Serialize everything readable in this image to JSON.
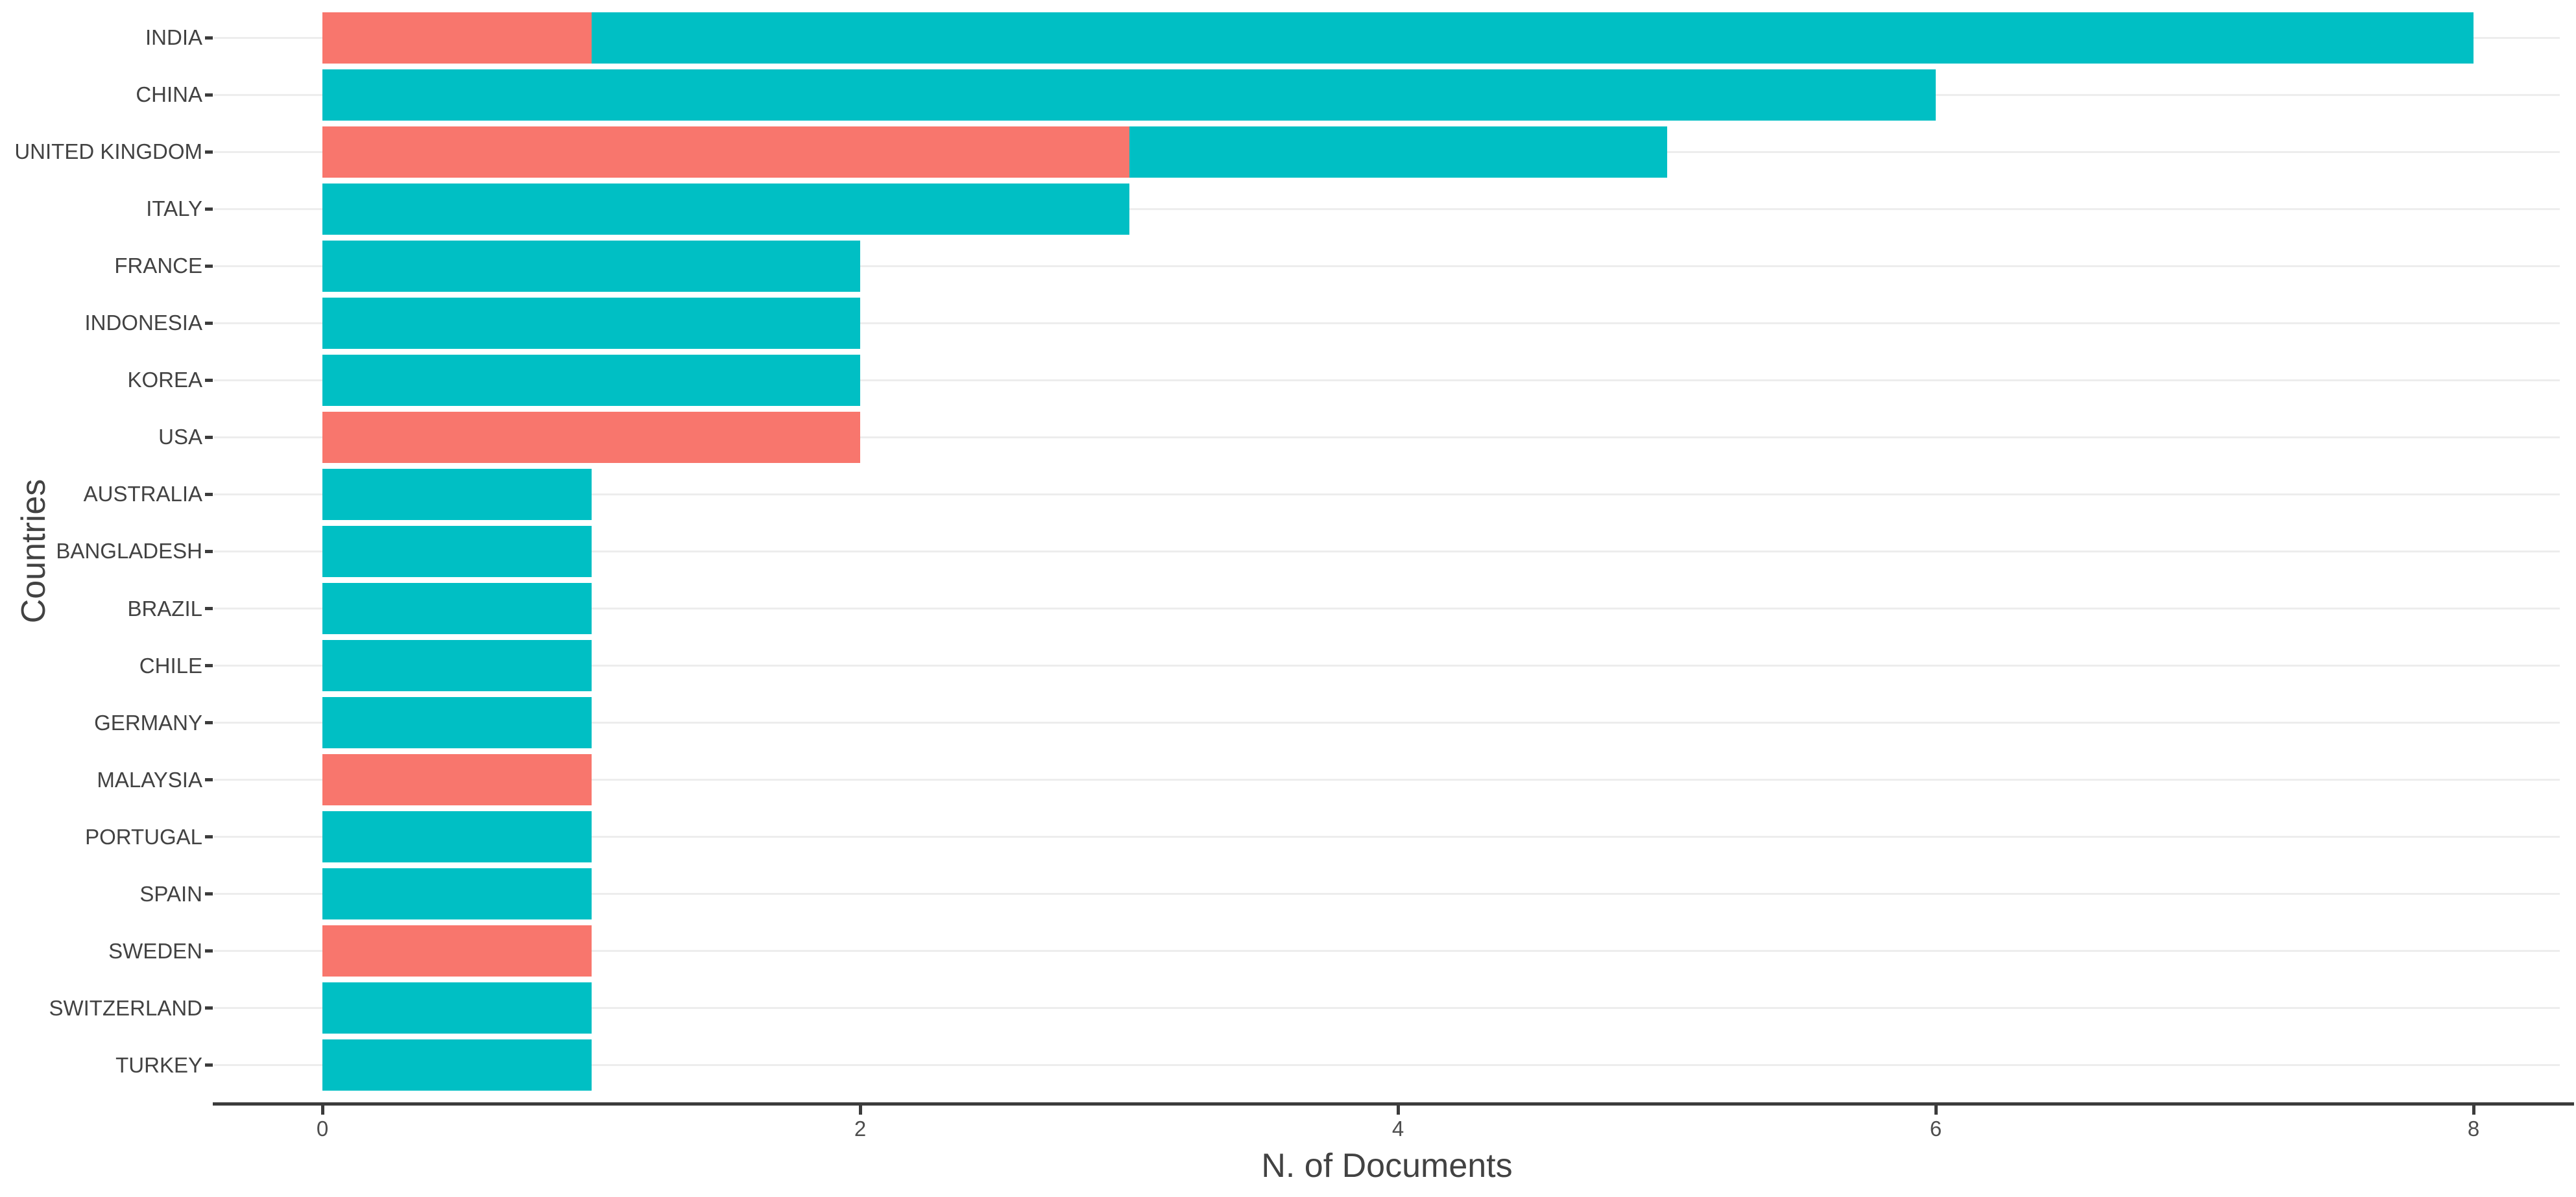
{
  "page": {
    "background": "#ffffff"
  },
  "axes": {
    "x_title": "N. of Documents",
    "y_title": "Countries",
    "x_tick_labels": [
      "0",
      "2",
      "4",
      "6",
      "8"
    ]
  },
  "colors": {
    "red_bar": "#F8766D",
    "teal_bar": "#00BFC4",
    "axis_line": "#3c3c3c",
    "tick_label": "#4e4e4e",
    "category_label": "#424242",
    "gridline": "#ededed"
  },
  "chart_data": {
    "type": "bar",
    "orientation": "horizontal",
    "stacked": true,
    "title": "",
    "xlabel": "N. of Documents",
    "ylabel": "Countries",
    "xlim": [
      0,
      8
    ],
    "x_ticks": [
      0,
      2,
      4,
      6,
      8
    ],
    "grid": "horizontal category gridlines only",
    "legend_position": "none",
    "categories": [
      "INDIA",
      "CHINA",
      "UNITED KINGDOM",
      "ITALY",
      "FRANCE",
      "INDONESIA",
      "KOREA",
      "USA",
      "AUSTRALIA",
      "BANGLADESH",
      "BRAZIL",
      "CHILE",
      "GERMANY",
      "MALAYSIA",
      "PORTUGAL",
      "SPAIN",
      "SWEDEN",
      "SWITZERLAND",
      "TURKEY"
    ],
    "series": [
      {
        "name": "red",
        "color": "#F8766D",
        "values": [
          1,
          0,
          3,
          0,
          0,
          0,
          0,
          2,
          0,
          0,
          0,
          0,
          0,
          1,
          0,
          0,
          1,
          0,
          0
        ]
      },
      {
        "name": "teal",
        "color": "#00BFC4",
        "values": [
          7,
          6,
          2,
          3,
          2,
          2,
          2,
          0,
          1,
          1,
          1,
          1,
          1,
          0,
          1,
          1,
          0,
          1,
          1
        ]
      }
    ],
    "totals": [
      8,
      6,
      5,
      3,
      2,
      2,
      2,
      2,
      1,
      1,
      1,
      1,
      1,
      1,
      1,
      1,
      1,
      1,
      1
    ]
  }
}
